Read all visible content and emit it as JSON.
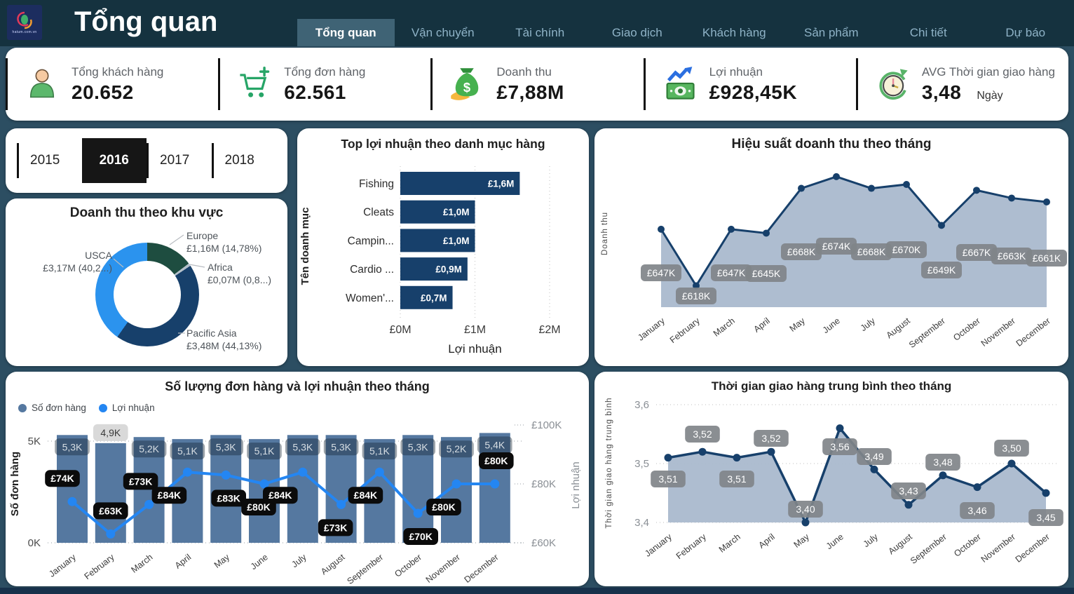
{
  "header": {
    "title": "Tổng quan",
    "logo_text": "hatum.com.vn",
    "tabs": [
      {
        "label": "Tổng quan",
        "active": true
      },
      {
        "label": "Vận chuyển",
        "active": false
      },
      {
        "label": "Tài chính",
        "active": false
      },
      {
        "label": "Giao dịch",
        "active": false
      },
      {
        "label": "Khách hàng",
        "active": false
      },
      {
        "label": "Sản phẩm",
        "active": false
      },
      {
        "label": "Chi tiết",
        "active": false
      },
      {
        "label": "Dự báo",
        "active": false
      }
    ]
  },
  "kpis": [
    {
      "icon": "person-icon",
      "label": "Tổng khách hàng",
      "value": "20.652"
    },
    {
      "icon": "cart-plus-icon",
      "label": "Tổng đơn hàng",
      "value": "62.561"
    },
    {
      "icon": "money-bag-icon",
      "label": "Doanh thu",
      "value": "£7,88M"
    },
    {
      "icon": "profit-banknote-icon",
      "label": "Lợi nhuận",
      "value": "£928,45K"
    },
    {
      "icon": "delivery-time-icon",
      "label": "AVG Thời gian giao hàng",
      "value": "3,48",
      "unit": "Ngày"
    }
  ],
  "year_filter": {
    "options": [
      "2015",
      "2016",
      "2017",
      "2018"
    ],
    "selected": "2016"
  },
  "chart_data": [
    {
      "id": "revenue_by_region",
      "type": "pie",
      "title": "Doanh thu theo khu vực",
      "legend_position": "callout-labels",
      "segments": [
        {
          "name": "Europe",
          "label": "£1,16M (14,78%)",
          "value_pct": 14.78,
          "color": "#1e4d40"
        },
        {
          "name": "Africa",
          "label": "£0,07M (0,8...)",
          "value_pct": 0.87,
          "color": "#b3bfc9"
        },
        {
          "name": "Pacific Asia",
          "label": "£3,48M (44,13%)",
          "value_pct": 44.13,
          "color": "#17406b"
        },
        {
          "name": "USCA",
          "label": "£3,17M (40,2...)",
          "value_pct": 40.22,
          "color": "#2b93ee"
        }
      ]
    },
    {
      "id": "top_profit_by_category",
      "type": "bar",
      "orientation": "horizontal",
      "title": "Top lợi nhuận theo danh mục hàng",
      "categories": [
        "Fishing",
        "Cleats",
        "Campin...",
        "Cardio ...",
        "Women'..."
      ],
      "values_m": [
        1.6,
        1.0,
        1.0,
        0.9,
        0.7
      ],
      "labels": [
        "£1,6M",
        "£1,0M",
        "£1,0M",
        "£0,9M",
        "£0,7M"
      ],
      "xlabel": "Lợi nhuận",
      "ylabel": "Tên doanh mục",
      "x_ticks": [
        "£0M",
        "£1M",
        "£2M"
      ],
      "xlim": [
        0,
        2
      ],
      "bar_color": "#17406b",
      "grid": "dotted-vertical"
    },
    {
      "id": "monthly_revenue_performance",
      "type": "area",
      "title": "Hiệu suất doanh thu theo tháng",
      "ylabel": "Doanh thu",
      "categories": [
        "January",
        "February",
        "March",
        "April",
        "May",
        "June",
        "July",
        "August",
        "September",
        "October",
        "November",
        "December"
      ],
      "values_k": [
        647,
        618,
        647,
        645,
        668,
        674,
        668,
        670,
        649,
        667,
        663,
        661
      ],
      "labels": [
        "£647K",
        "£618K",
        "£647K",
        "£645K",
        "£668K",
        "£674K",
        "£668K",
        "£670K",
        "£649K",
        "£667K",
        "£663K",
        "£661K"
      ],
      "line_color": "#17406b",
      "fill_color": "#aab9cd",
      "label_style": "gray-box"
    },
    {
      "id": "orders_and_profit_by_month",
      "type": "combo",
      "title": "Số lượng đơn hàng và lợi nhuận theo tháng",
      "legend": [
        {
          "label": "Số đơn hàng",
          "color": "#5578a0",
          "type": "bar"
        },
        {
          "label": "Lợi nhuận",
          "color": "#2486f2",
          "type": "line"
        }
      ],
      "categories": [
        "January",
        "February",
        "March",
        "April",
        "May",
        "June",
        "July",
        "August",
        "September",
        "October",
        "November",
        "December"
      ],
      "bars_k": [
        5.3,
        4.9,
        5.2,
        5.1,
        5.3,
        5.1,
        5.3,
        5.3,
        5.1,
        5.3,
        5.2,
        5.4
      ],
      "bar_labels": [
        "5,3K",
        "4,9K",
        "5,2K",
        "5,1K",
        "5,3K",
        "5,1K",
        "5,3K",
        "5,3K",
        "5,1K",
        "5,3K",
        "5,2K",
        "5,4K"
      ],
      "line_k": [
        74,
        63,
        73,
        84,
        83,
        80,
        84,
        73,
        84,
        70,
        80,
        80
      ],
      "line_labels": [
        "£74K",
        "£63K",
        "£73K",
        "£84K",
        "£83K",
        "£80K",
        "£84K",
        "£73K",
        "£84K",
        "£70K",
        "£80K",
        "£80K"
      ],
      "y_left": {
        "label": "Số đơn hàng",
        "ticks": [
          "5K",
          "0K"
        ],
        "lim": [
          0,
          5
        ]
      },
      "y_right": {
        "label": "Lợi nhuận",
        "ticks": [
          "£100K",
          "£80K",
          "£60K"
        ],
        "lim": [
          60,
          100
        ]
      }
    },
    {
      "id": "avg_delivery_time_by_month",
      "type": "area",
      "title": "Thời gian giao hàng trung bình theo tháng",
      "ylabel": "Thời gian giao hàng trung bình",
      "categories": [
        "January",
        "February",
        "March",
        "April",
        "May",
        "June",
        "July",
        "August",
        "September",
        "October",
        "November",
        "December"
      ],
      "values": [
        3.51,
        3.52,
        3.51,
        3.52,
        3.4,
        3.56,
        3.49,
        3.43,
        3.48,
        3.46,
        3.5,
        3.45
      ],
      "labels": [
        "3,51",
        "3,52",
        "3,51",
        "3,52",
        "3,40",
        "3,56",
        "3,49",
        "3,43",
        "3,48",
        "3,46",
        "3,50",
        "3,45"
      ],
      "y_ticks": [
        "3,6",
        "3,5",
        "3,4"
      ],
      "ylim": [
        3.4,
        3.6
      ],
      "line_color": "#17406b",
      "fill_color": "#aab9cd",
      "label_style": "gray-box"
    }
  ]
}
